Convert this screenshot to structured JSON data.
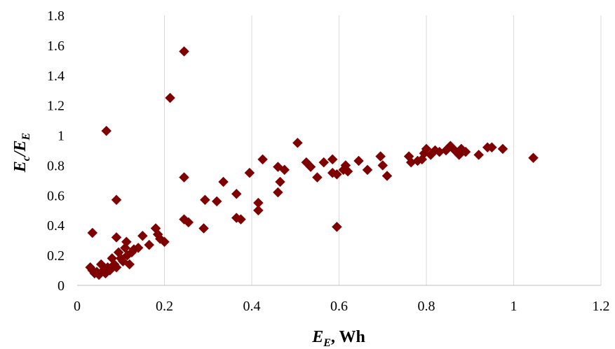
{
  "chart_data": {
    "type": "scatter",
    "title": "",
    "xlabel": {
      "main": "E",
      "sub": "E",
      "suffix": ", Wh"
    },
    "ylabel": {
      "main1": "E",
      "sub1": "c",
      "mid": "/E",
      "sub2": "E"
    },
    "xlim": [
      0,
      1.2
    ],
    "ylim": [
      0,
      1.8
    ],
    "x_ticks": [
      "0",
      "0.2",
      "0.4",
      "0.6",
      "0.8",
      "1",
      "1.2"
    ],
    "y_ticks": [
      "0",
      "0.2",
      "0.4",
      "0.6",
      "0.8",
      "1",
      "1.2",
      "1.4",
      "1.6",
      "1.8"
    ],
    "x_tick_values": [
      0,
      0.2,
      0.4,
      0.6,
      0.8,
      1,
      1.2
    ],
    "y_tick_values": [
      0,
      0.2,
      0.4,
      0.6,
      0.8,
      1,
      1.2,
      1.4,
      1.6,
      1.8
    ],
    "vertical_grid": true,
    "horizontal_grid": false,
    "marker": "diamond",
    "color": "#7f0000",
    "series": [
      {
        "points": [
          [
            0.03,
            0.12
          ],
          [
            0.035,
            0.1
          ],
          [
            0.04,
            0.08
          ],
          [
            0.045,
            0.09
          ],
          [
            0.05,
            0.07
          ],
          [
            0.055,
            0.14
          ],
          [
            0.06,
            0.1
          ],
          [
            0.065,
            0.08
          ],
          [
            0.07,
            0.12
          ],
          [
            0.075,
            0.1
          ],
          [
            0.08,
            0.18
          ],
          [
            0.085,
            0.14
          ],
          [
            0.09,
            0.12
          ],
          [
            0.095,
            0.22
          ],
          [
            0.1,
            0.18
          ],
          [
            0.105,
            0.16
          ],
          [
            0.11,
            0.25
          ],
          [
            0.115,
            0.2
          ],
          [
            0.12,
            0.14
          ],
          [
            0.125,
            0.22
          ],
          [
            0.13,
            0.24
          ],
          [
            0.14,
            0.25
          ],
          [
            0.15,
            0.33
          ],
          [
            0.165,
            0.27
          ],
          [
            0.18,
            0.38
          ],
          [
            0.185,
            0.34
          ],
          [
            0.19,
            0.31
          ],
          [
            0.2,
            0.29
          ],
          [
            0.035,
            0.35
          ],
          [
            0.067,
            1.03
          ],
          [
            0.09,
            0.57
          ],
          [
            0.09,
            0.32
          ],
          [
            0.113,
            0.29
          ],
          [
            0.213,
            1.25
          ],
          [
            0.245,
            1.56
          ],
          [
            0.245,
            0.72
          ],
          [
            0.245,
            0.44
          ],
          [
            0.255,
            0.42
          ],
          [
            0.29,
            0.38
          ],
          [
            0.293,
            0.57
          ],
          [
            0.32,
            0.56
          ],
          [
            0.335,
            0.69
          ],
          [
            0.365,
            0.61
          ],
          [
            0.365,
            0.45
          ],
          [
            0.375,
            0.44
          ],
          [
            0.395,
            0.75
          ],
          [
            0.415,
            0.55
          ],
          [
            0.415,
            0.5
          ],
          [
            0.425,
            0.84
          ],
          [
            0.46,
            0.79
          ],
          [
            0.46,
            0.62
          ],
          [
            0.465,
            0.69
          ],
          [
            0.475,
            0.77
          ],
          [
            0.505,
            0.95
          ],
          [
            0.525,
            0.82
          ],
          [
            0.535,
            0.79
          ],
          [
            0.55,
            0.72
          ],
          [
            0.565,
            0.82
          ],
          [
            0.585,
            0.84
          ],
          [
            0.585,
            0.75
          ],
          [
            0.595,
            0.74
          ],
          [
            0.595,
            0.39
          ],
          [
            0.61,
            0.77
          ],
          [
            0.615,
            0.8
          ],
          [
            0.62,
            0.76
          ],
          [
            0.645,
            0.83
          ],
          [
            0.665,
            0.77
          ],
          [
            0.695,
            0.86
          ],
          [
            0.7,
            0.8
          ],
          [
            0.71,
            0.73
          ],
          [
            0.76,
            0.86
          ],
          [
            0.765,
            0.82
          ],
          [
            0.78,
            0.83
          ],
          [
            0.79,
            0.84
          ],
          [
            0.795,
            0.88
          ],
          [
            0.8,
            0.91
          ],
          [
            0.81,
            0.87
          ],
          [
            0.82,
            0.9
          ],
          [
            0.83,
            0.89
          ],
          [
            0.845,
            0.9
          ],
          [
            0.855,
            0.93
          ],
          [
            0.865,
            0.9
          ],
          [
            0.875,
            0.87
          ],
          [
            0.88,
            0.91
          ],
          [
            0.89,
            0.89
          ],
          [
            0.92,
            0.87
          ],
          [
            0.94,
            0.92
          ],
          [
            0.95,
            0.92
          ],
          [
            0.975,
            0.91
          ],
          [
            1.045,
            0.85
          ]
        ]
      }
    ]
  }
}
